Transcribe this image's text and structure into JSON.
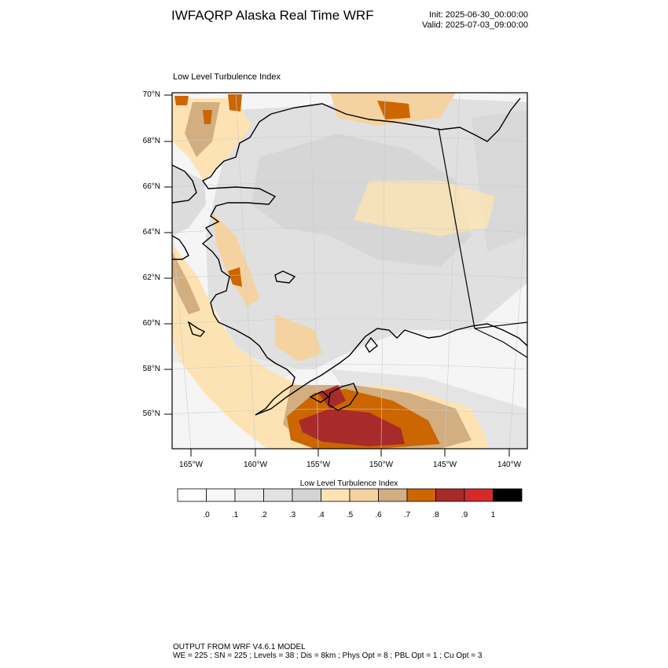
{
  "header": {
    "title": "IWFAQRP Alaska Real Time WRF",
    "init": "Init: 2025-06-30_00:00:00",
    "valid": "Valid: 2025-07-03_09:00:00"
  },
  "map": {
    "subtitle": "Low Level Turbulence Index",
    "lat_labels": [
      "70°N",
      "68°N",
      "66°N",
      "64°N",
      "62°N",
      "60°N",
      "58°N",
      "56°N"
    ],
    "lon_labels": [
      "165°W",
      "160°W",
      "155°W",
      "150°W",
      "145°W",
      "140°W"
    ]
  },
  "colorbar": {
    "title": "Low Level Turbulence Index",
    "labels": [
      ".0",
      ".1",
      ".2",
      ".3",
      ".4",
      ".5",
      ".6",
      ".7",
      ".8",
      ".9",
      "1"
    ],
    "colors": [
      "#ffffff",
      "#f7f7f7",
      "#eeeeee",
      "#e2e2e2",
      "#d4d4d4",
      "#fde3b3",
      "#f4d3a1",
      "#d2ae80",
      "#cc6600",
      "#a82a2a",
      "#d42a2a",
      "#000000"
    ]
  },
  "footer": {
    "line1": "OUTPUT FROM WRF V4.6.1 MODEL",
    "line2": "WE = 225 ; SN = 225 ; Levels = 38 ; Dis = 8km ; Phys Opt = 8 ; PBL Opt = 1 ; Cu Opt = 3"
  }
}
